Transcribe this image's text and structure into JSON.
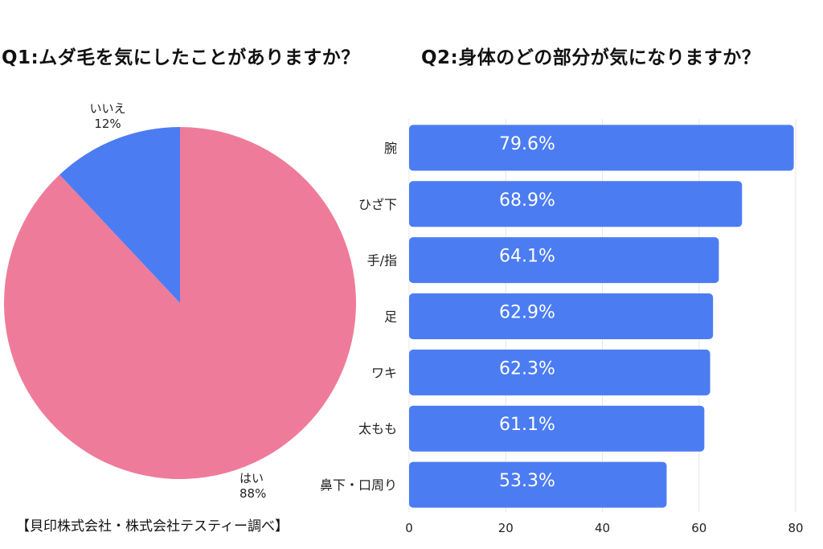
{
  "q1_title": "Q1:ムダ毛を気にしたことがありますか？",
  "q2_title": "Q2:身体のどの部分が気になりますか？",
  "source": "【貝印株式会社・株式会社テスティー調べ】",
  "colors": {
    "pie_yes": "#EF7B9A",
    "pie_no": "#4C7CF2",
    "bar": "#4C7CF2",
    "grid": "#E6E6E6"
  },
  "chart_data": [
    {
      "type": "pie",
      "title": "Q1:ムダ毛を気にしたことがありますか？",
      "slices": [
        {
          "label": "はい",
          "value": 88,
          "value_label": "88%"
        },
        {
          "label": "いいえ",
          "value": 12,
          "value_label": "12%"
        }
      ]
    },
    {
      "type": "bar",
      "orientation": "horizontal",
      "title": "Q2:身体のどの部分が気になりますか？",
      "categories": [
        "腕",
        "ひざ下",
        "手/指",
        "足",
        "ワキ",
        "太もも",
        "鼻下・口周り"
      ],
      "values": [
        79.6,
        68.9,
        64.1,
        62.9,
        62.3,
        61.1,
        53.3
      ],
      "value_labels": [
        "79.6%",
        "68.9%",
        "64.1%",
        "62.9%",
        "62.3%",
        "61.1%",
        "53.3%"
      ],
      "xlim": [
        0,
        80
      ],
      "xticks": [
        "0",
        "20",
        "40",
        "60",
        "80"
      ],
      "grid": true
    }
  ]
}
